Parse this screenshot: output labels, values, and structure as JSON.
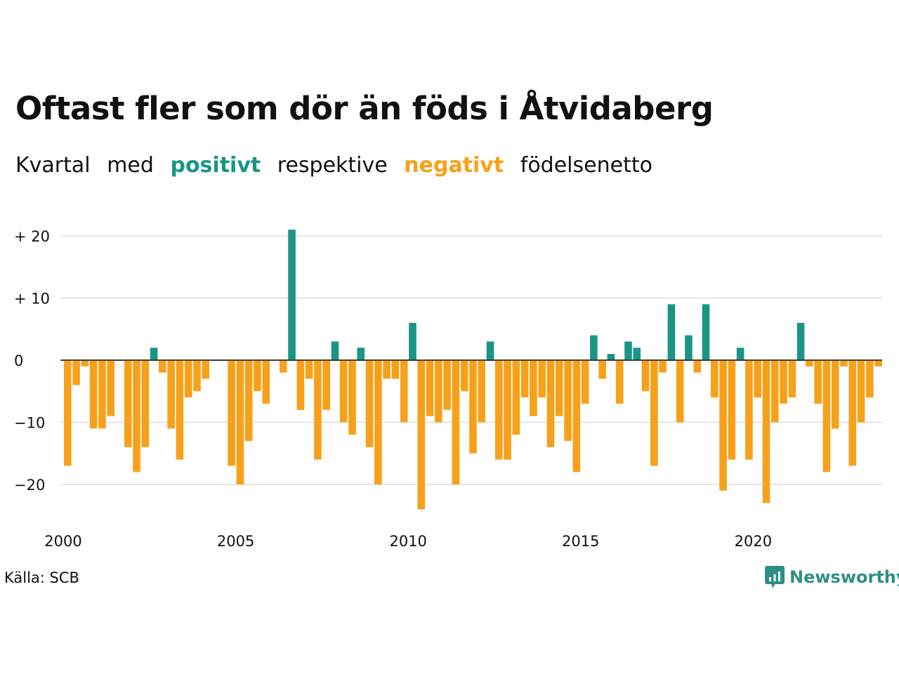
{
  "title": "Oftast fler som dör än föds i Åtvidaberg",
  "subtitle": {
    "w1": "Kvartal",
    "w2": "med",
    "positive": "positivt",
    "w3": "respektive",
    "negative": "negativt",
    "w4": "födelsenetto"
  },
  "source": "Källa: SCB",
  "logo_text": "Newsworthy",
  "colors": {
    "positive": "#1a9585",
    "negative": "#f7a11a",
    "grid": "#dddddd",
    "brand": "#2f8f84"
  },
  "chart_data": {
    "type": "bar",
    "x_start": "2000 Q1",
    "x_ticks": [
      "2000",
      "2005",
      "2010",
      "2015",
      "2020"
    ],
    "y_ticks": [
      20,
      10,
      0,
      -10,
      -20
    ],
    "y_tick_labels": [
      "+ 20",
      "+ 10",
      "0",
      "−10",
      "−20"
    ],
    "ylim": [
      -25,
      22
    ],
    "grid": true,
    "values": [
      -17,
      -4,
      -1,
      -11,
      -11,
      -9,
      0,
      -14,
      -18,
      -14,
      2,
      -2,
      -11,
      -16,
      -6,
      -5,
      -3,
      0,
      0,
      -17,
      -20,
      -13,
      -5,
      -7,
      0,
      -2,
      21,
      -8,
      -3,
      -16,
      -8,
      3,
      -10,
      -12,
      2,
      -14,
      -20,
      -3,
      -3,
      -10,
      6,
      -24,
      -9,
      -10,
      -8,
      -20,
      -5,
      -15,
      -10,
      3,
      -16,
      -16,
      -12,
      -6,
      -9,
      -6,
      -14,
      -9,
      -13,
      -18,
      -7,
      4,
      -3,
      1,
      -7,
      3,
      2,
      -5,
      -17,
      -2,
      9,
      -10,
      4,
      -2,
      9,
      -6,
      -21,
      -16,
      2,
      -16,
      -6,
      -23,
      -10,
      -7,
      -6,
      6,
      -1,
      -7,
      -18,
      -11,
      -1,
      -17,
      -10,
      -6,
      -1
    ]
  }
}
